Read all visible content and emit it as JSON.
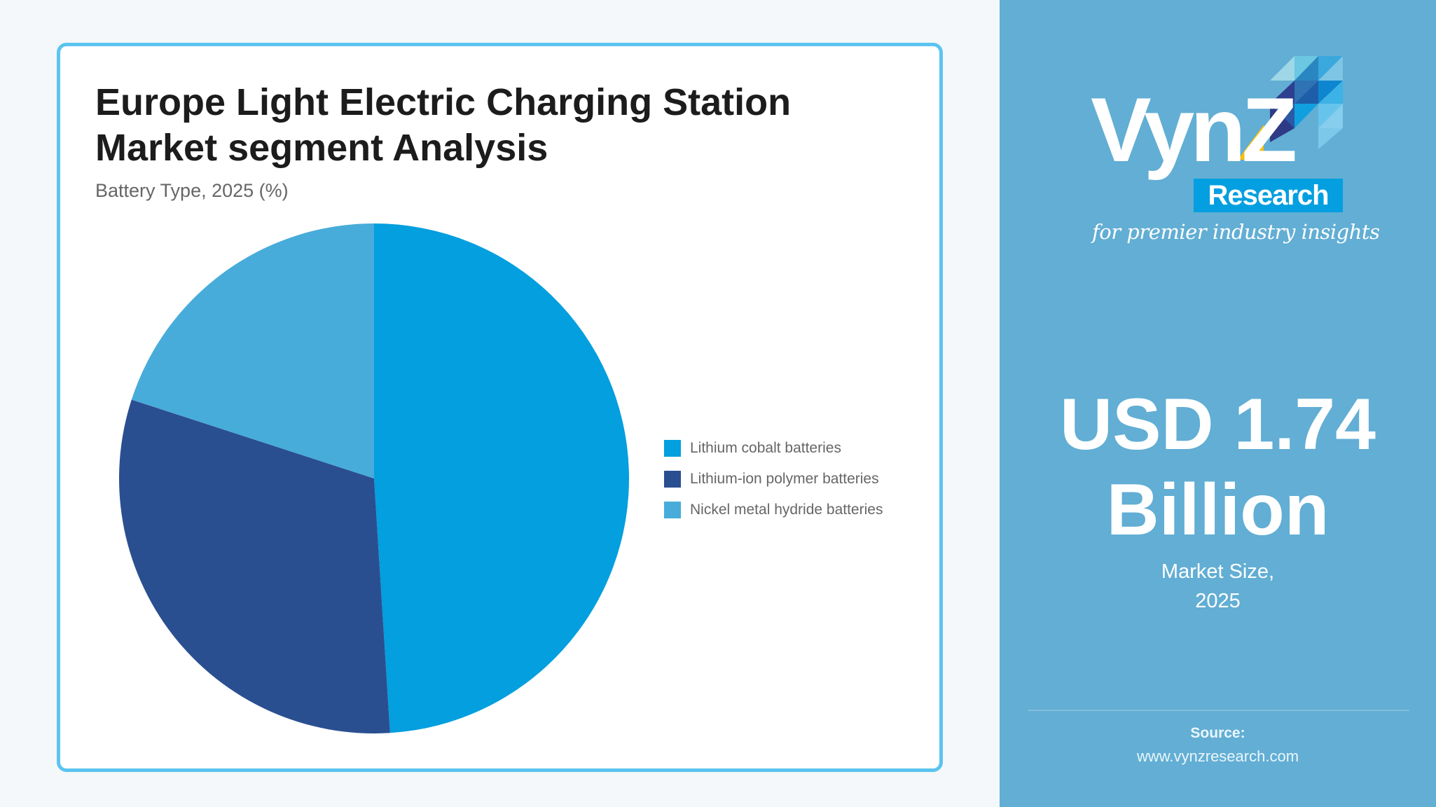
{
  "card": {
    "title_line1": "Europe Light Electric Charging Station",
    "title_line2": "Market segment Analysis",
    "subtitle": "Battery Type, 2025 (%)"
  },
  "legend": [
    {
      "label": "Lithium cobalt batteries",
      "color": "#039FDF"
    },
    {
      "label": "Lithium-ion polymer batteries",
      "color": "#2A4F91"
    },
    {
      "label": "Nickel metal hydride batteries",
      "color": "#47ACDA"
    }
  ],
  "sidebar": {
    "logo": {
      "brand": "VynZ",
      "research": "Research",
      "tagline": "for premier industry insights"
    },
    "market_value_line1": "USD 1.74",
    "market_value_line2": "Billion",
    "market_label_line1": "Market Size,",
    "market_label_line2": "2025",
    "source_label": "Source:",
    "source_url": "www.vynzresearch.com"
  },
  "colors": {
    "background": "#F4F8FB",
    "card_border": "#5BC4F0",
    "sidebar": "#62AED4",
    "logo_research_box": "#049FE0",
    "logo_accent_yellow": "#F7BE0E"
  },
  "chart_data": {
    "type": "pie",
    "title": "Europe Light Electric Charging Station Market segment Analysis",
    "subtitle": "Battery Type, 2025 (%)",
    "categories": [
      "Lithium cobalt batteries",
      "Lithium-ion polymer batteries",
      "Nickel metal hydride batteries"
    ],
    "values": [
      49,
      31,
      20
    ],
    "colors": [
      "#039FDF",
      "#2A4F91",
      "#47ACDA"
    ],
    "start_angle": "12 o'clock, clockwise",
    "legend_position": "right",
    "data_labels": false
  }
}
